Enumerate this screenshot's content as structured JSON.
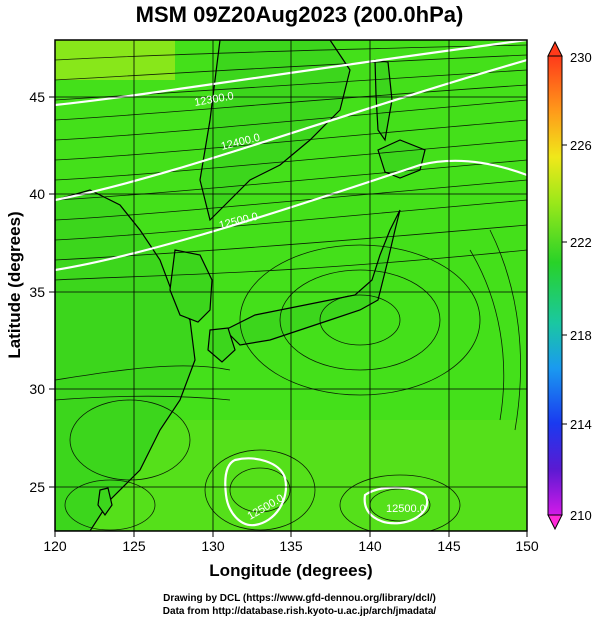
{
  "title": "MSM 09Z20Aug2023 (200.0hPa)",
  "map": {
    "lon_range": [
      120,
      150
    ],
    "lat_range": [
      22.5,
      47.7
    ],
    "x_ticks": [
      "120",
      "125",
      "130",
      "135",
      "140",
      "145",
      "150"
    ],
    "y_ticks": [
      "25",
      "30",
      "35",
      "40",
      "45"
    ],
    "xlabel": "Longitude (degrees)",
    "ylabel": "Latitude  (degrees)",
    "grid": true,
    "contour_labels": [
      "12300.0",
      "12400.0",
      "12500.0",
      "12500.0",
      "12500.0"
    ],
    "field_color": "#44e01a",
    "contour_color": "#ffffff",
    "coast_color": "#000000",
    "arrow_color": "#000000"
  },
  "colorbar": {
    "labels": [
      "230",
      "226",
      "222",
      "218",
      "214",
      "210"
    ],
    "colors": [
      "#ff3a1a",
      "#ff9a1a",
      "#f0e81a",
      "#9ae81a",
      "#28d228",
      "#1ac8a0",
      "#1a9af0",
      "#1a3af0",
      "#5a1ad2",
      "#d21ae8"
    ]
  },
  "credit": {
    "line1": "Drawing by DCL (https://www.gfd-dennou.org/library/dcl/)",
    "line2": "Data from http://database.rish.kyoto-u.ac.jp/arch/jmadata/"
  }
}
